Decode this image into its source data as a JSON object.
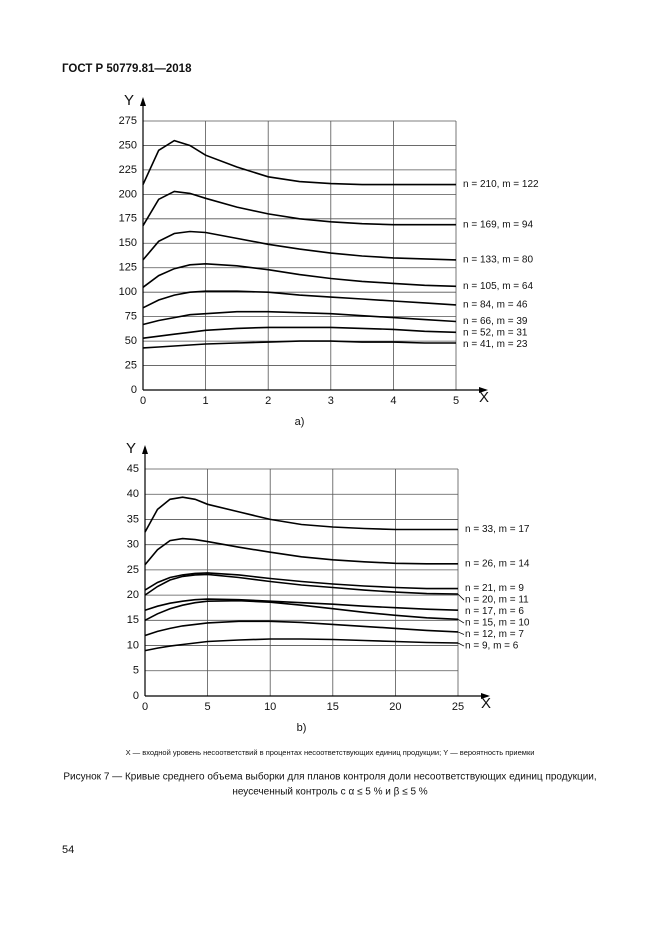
{
  "header": {
    "title": "ГОСТ Р 50779.81—2018"
  },
  "chart_data": [
    {
      "type": "line",
      "caption": "a)",
      "x_label": "X",
      "y_label": "Y",
      "color": "#000000",
      "grid": true,
      "xlim": [
        0,
        5
      ],
      "ylim": [
        0,
        275
      ],
      "xticks": [
        0,
        1,
        2,
        3,
        4,
        5
      ],
      "yticks": [
        0,
        25,
        50,
        75,
        100,
        125,
        150,
        175,
        200,
        225,
        250,
        275
      ],
      "x": [
        0,
        0.25,
        0.5,
        0.75,
        1,
        1.5,
        2,
        2.5,
        3,
        3.5,
        4,
        4.5,
        5
      ],
      "series": [
        {
          "name": "n = 210, m = 122",
          "values": [
            210,
            245,
            255,
            250,
            240,
            228,
            218,
            213,
            211,
            210,
            210,
            210,
            210
          ]
        },
        {
          "name": "n = 169, m = 94",
          "values": [
            168,
            195,
            203,
            201,
            196,
            187,
            180,
            175,
            172,
            170,
            169,
            169,
            169
          ]
        },
        {
          "name": "n = 133, m = 80",
          "values": [
            133,
            152,
            160,
            162,
            161,
            155,
            149,
            144,
            140,
            137,
            135,
            134,
            133
          ]
        },
        {
          "name": "n = 105, m = 64",
          "values": [
            105,
            117,
            124,
            128,
            129,
            127,
            123,
            118,
            114,
            111,
            109,
            107,
            106
          ]
        },
        {
          "name": "n = 84, m = 46",
          "values": [
            84,
            92,
            97,
            100,
            101,
            101,
            100,
            97,
            95,
            93,
            91,
            89,
            87
          ]
        },
        {
          "name": "n = 66, m = 39",
          "values": [
            67,
            71,
            74,
            77,
            78,
            80,
            80,
            79,
            78,
            76,
            74,
            72,
            70
          ]
        },
        {
          "name": "n = 52, m = 31",
          "values": [
            53,
            55,
            57,
            59,
            61,
            63,
            64,
            64,
            64,
            63,
            62,
            60,
            59
          ]
        },
        {
          "name": "n = 41, m = 23",
          "values": [
            43,
            44,
            45,
            46,
            47,
            48,
            49,
            50,
            50,
            49,
            49,
            48,
            48
          ]
        }
      ]
    },
    {
      "type": "line",
      "caption": "b)",
      "x_label": "X",
      "y_label": "Y",
      "color": "#000000",
      "grid": true,
      "xlim": [
        0,
        25
      ],
      "ylim": [
        0,
        45
      ],
      "xticks": [
        0,
        5,
        10,
        15,
        20,
        25
      ],
      "yticks": [
        0,
        5,
        10,
        15,
        20,
        25,
        30,
        35,
        40,
        45
      ],
      "x": [
        0,
        1,
        2,
        3,
        4,
        5,
        7.5,
        10,
        12.5,
        15,
        17.5,
        20,
        22.5,
        25
      ],
      "series": [
        {
          "name": "n = 33, m = 17",
          "values": [
            32.5,
            37,
            39,
            39.4,
            39,
            38,
            36.5,
            35,
            34,
            33.5,
            33.2,
            33,
            33,
            33
          ]
        },
        {
          "name": "n = 26, m = 14",
          "values": [
            26,
            29,
            30.8,
            31.2,
            31,
            30.6,
            29.5,
            28.5,
            27.6,
            27,
            26.6,
            26.3,
            26.2,
            26.2
          ]
        },
        {
          "name": "n = 21, m = 9",
          "values": [
            21,
            22.5,
            23.5,
            24,
            24.3,
            24.4,
            24,
            23.3,
            22.7,
            22.2,
            21.8,
            21.5,
            21.3,
            21.3
          ]
        },
        {
          "name": "n = 20, m = 11",
          "values": [
            20,
            21.7,
            23,
            23.7,
            24,
            24.1,
            23.5,
            22.7,
            22,
            21.5,
            21,
            20.6,
            20.3,
            20.2
          ]
        },
        {
          "name": "n = 17, m = 6",
          "values": [
            17,
            17.8,
            18.4,
            18.8,
            19.1,
            19.2,
            19.1,
            18.8,
            18.5,
            18.2,
            17.8,
            17.5,
            17.2,
            17
          ]
        },
        {
          "name": "n = 15, m = 10",
          "values": [
            15,
            16.3,
            17.3,
            18,
            18.5,
            18.8,
            18.9,
            18.6,
            18,
            17.3,
            16.6,
            16,
            15.5,
            15.2
          ]
        },
        {
          "name": "n = 12, m = 7",
          "values": [
            12,
            12.8,
            13.4,
            13.9,
            14.2,
            14.5,
            14.8,
            14.8,
            14.6,
            14.2,
            13.8,
            13.4,
            13,
            12.7
          ]
        },
        {
          "name": "n = 9, m = 6",
          "values": [
            9,
            9.5,
            9.9,
            10.2,
            10.5,
            10.8,
            11.1,
            11.3,
            11.3,
            11.2,
            11,
            10.8,
            10.6,
            10.5
          ]
        }
      ]
    }
  ],
  "footnote": "X — входной уровень несоответствий в процентах несоответствующих единиц продукции; Y — вероятность приемки",
  "caption": [
    "Рисунок 7 — Кривые среднего объема выборки для планов контроля доли несоответствующих единиц продукции,",
    "неусеченный контроль с α ≤ 5 % и β ≤ 5 %"
  ],
  "page_number": "54"
}
